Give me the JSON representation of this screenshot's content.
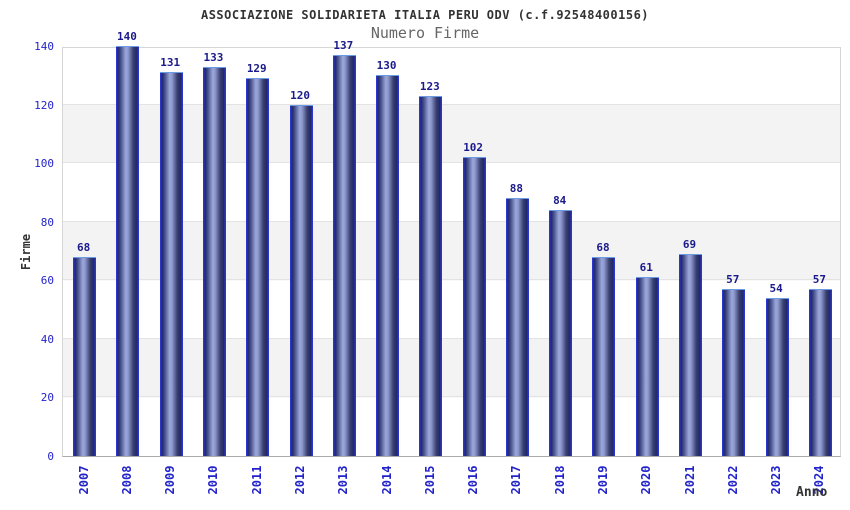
{
  "chart_data": {
    "type": "bar",
    "title": "ASSOCIAZIONE SOLIDARIETA ITALIA PERU ODV (c.f.92548400156)",
    "subtitle": "Numero Firme",
    "xlabel": "Anno",
    "ylabel": "Firme",
    "categories": [
      "2007",
      "2008",
      "2009",
      "2010",
      "2011",
      "2012",
      "2013",
      "2014",
      "2015",
      "2016",
      "2017",
      "2018",
      "2019",
      "2020",
      "2021",
      "2022",
      "2023",
      "2024"
    ],
    "values": [
      68,
      140,
      131,
      133,
      129,
      120,
      137,
      130,
      123,
      102,
      88,
      84,
      68,
      61,
      69,
      57,
      54,
      57
    ],
    "ylim": [
      0,
      140
    ],
    "yticks": [
      0,
      20,
      40,
      60,
      80,
      100,
      120,
      140
    ],
    "grid": true,
    "legend": "none",
    "colors": {
      "tick_label_blue": "#2323cc",
      "value_label_navy": "#1a1a8c",
      "title_color": "#333333",
      "subtitle_color": "#666666",
      "bar_edge_blue": "#2b36cd",
      "bar_dark": "#20266a",
      "bar_highlight": "#9ba6d8",
      "bar_top_edge": "#6b9be4",
      "band_gray": "#f3f3f3",
      "band_white": "#ffffff",
      "gridline": "#e3e3e3",
      "plot_border": "#d6d6d6",
      "axis_line": "#ababab"
    }
  }
}
